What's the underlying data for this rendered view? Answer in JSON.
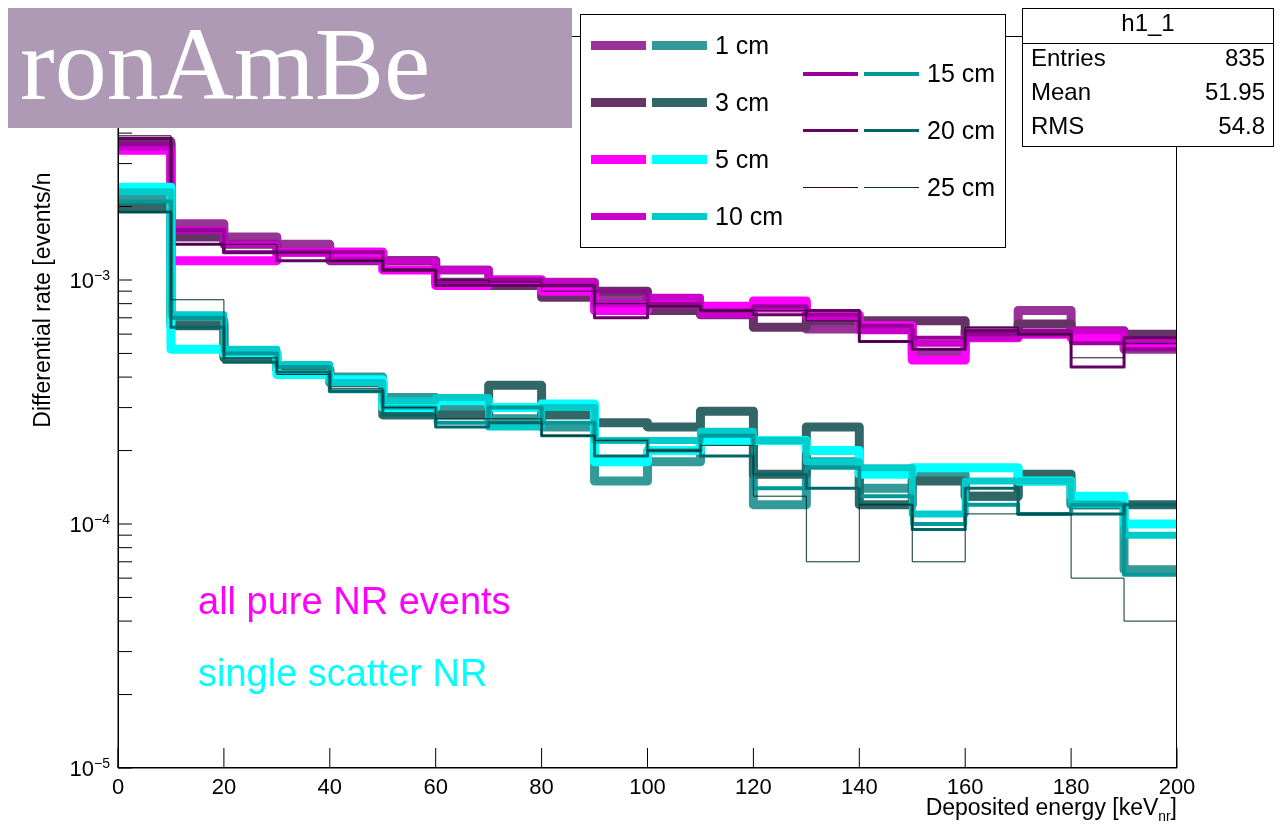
{
  "chart_data": {
    "type": "histogram",
    "title": "ronAmBe",
    "xlabel": "Deposited energy [keV$_{nr}$]",
    "ylabel": "Differential rate [events/n",
    "log": "y",
    "legend": "top right",
    "grid": false,
    "bins": [
      0,
      10,
      20,
      30,
      40,
      50,
      60,
      70,
      80,
      90,
      100,
      110,
      120,
      130,
      140,
      150,
      160,
      170,
      180,
      190,
      200
    ],
    "xlim": [
      0,
      200
    ],
    "xticks": [
      0,
      20,
      40,
      60,
      80,
      100,
      120,
      140,
      160,
      180,
      200
    ],
    "ylim": [
      1e-05,
      0.01
    ],
    "yticks": [
      {
        "value": 1e-05,
        "label": "10$^{−5}$"
      },
      {
        "value": 2e-05,
        "label": null
      },
      {
        "value": 3e-05,
        "label": null
      },
      {
        "value": 4e-05,
        "label": null
      },
      {
        "value": 5e-05,
        "label": null
      },
      {
        "value": 6e-05,
        "label": null
      },
      {
        "value": 7e-05,
        "label": null
      },
      {
        "value": 8e-05,
        "label": null
      },
      {
        "value": 9e-05,
        "label": null
      },
      {
        "value": 0.0001,
        "label": "10$^{−4}$"
      },
      {
        "value": 0.0002,
        "label": null
      },
      {
        "value": 0.0003,
        "label": null
      },
      {
        "value": 0.0004,
        "label": null
      },
      {
        "value": 0.0005,
        "label": null
      },
      {
        "value": 0.0006,
        "label": null
      },
      {
        "value": 0.0007,
        "label": null
      },
      {
        "value": 0.0008,
        "label": null
      },
      {
        "value": 0.0009,
        "label": null
      },
      {
        "value": 0.001,
        "label": "10$^{−3}$"
      },
      {
        "value": 0.002,
        "label": null
      },
      {
        "value": 0.003,
        "label": null
      },
      {
        "value": 0.004,
        "label": null
      },
      {
        "value": 0.005,
        "label": null
      },
      {
        "value": 0.006,
        "label": null
      },
      {
        "value": 0.007,
        "label": null
      },
      {
        "value": 0.008,
        "label": null
      },
      {
        "value": 0.009,
        "label": null
      }
    ],
    "annotations": [
      "all pure NR events",
      "single scatter NR",
      "h1_1",
      "Entries",
      "835",
      "Mean",
      "51.95",
      "RMS",
      "54.8"
    ],
    "series": [
      {
        "color": "#993399",
        "values": [
          0.0037,
          0.0017,
          0.0015,
          0.0014,
          0.0013,
          0.0012,
          0.0011,
          0.001,
          0.00098,
          0.00085,
          0.0008,
          0.00074,
          0.0008,
          0.00063,
          0.00065,
          0.0005,
          0.00062,
          0.00075,
          0.0006,
          0.00052
        ]
      },
      {
        "color": "#663366",
        "values": [
          0.0036,
          0.0015,
          0.0014,
          0.0013,
          0.0012,
          0.0012,
          0.00098,
          0.00095,
          0.00085,
          0.0009,
          0.00075,
          0.00072,
          0.00064,
          0.00068,
          0.00068,
          0.00068,
          0.0006,
          0.00066,
          0.00062,
          0.0006
        ]
      },
      {
        "color": "#ff00ff",
        "values": [
          0.0034,
          0.0012,
          0.0012,
          0.0013,
          0.0013,
          0.0011,
          0.00095,
          0.001,
          0.0009,
          0.00075,
          0.0008,
          0.00078,
          0.00082,
          0.00072,
          0.00065,
          0.00047,
          0.00058,
          0.0006,
          0.00058,
          0.00054
        ]
      },
      {
        "color": "#cc00cc",
        "values": [
          0.0035,
          0.0016,
          0.0014,
          0.0013,
          0.0012,
          0.0012,
          0.0011,
          0.001,
          0.00098,
          0.0008,
          0.00085,
          0.00072,
          0.00076,
          0.0007,
          0.00062,
          0.00055,
          0.00058,
          0.0006,
          0.00062,
          0.00056
        ]
      },
      {
        "color": "#990099",
        "values": [
          0.0036,
          0.0016,
          0.0013,
          0.0013,
          0.0013,
          0.0011,
          0.00098,
          0.001,
          0.00095,
          0.0009,
          0.0008,
          0.00075,
          0.00078,
          0.00072,
          0.00065,
          0.00058,
          0.0006,
          0.00062,
          0.00055,
          0.00052
        ]
      },
      {
        "color": "#660066",
        "values": [
          0.0038,
          0.0014,
          0.0013,
          0.0012,
          0.0012,
          0.0011,
          0.00095,
          0.00095,
          0.00095,
          0.0007,
          0.00078,
          0.00075,
          0.00072,
          0.00075,
          0.00056,
          0.00052,
          0.00062,
          0.0006,
          0.00044,
          0.00058
        ]
      },
      {
        "color": "#330033",
        "values": [
          0.0039,
          0.0014,
          0.0014,
          0.0013,
          0.0012,
          0.0011,
          0.001,
          0.00098,
          0.0009,
          0.0008,
          0.00078,
          0.00075,
          0.00075,
          0.00068,
          0.00056,
          0.00052,
          0.00064,
          0.0006,
          0.00048,
          0.00055
        ]
      },
      {
        "name": "1 cm",
        "color": "#339999",
        "values": [
          0.0022,
          0.00068,
          0.0005,
          0.00043,
          0.0004,
          0.00033,
          0.0003,
          0.00027,
          0.00025,
          0.00015,
          0.00018,
          0.00022,
          0.00012,
          0.00018,
          0.00014,
          0.00016,
          0.00013,
          0.00015,
          0.00012,
          6.5e-05
        ]
      },
      {
        "name": "3 cm",
        "color": "#336666",
        "values": [
          0.002,
          0.00065,
          0.00048,
          0.00043,
          0.00038,
          0.00028,
          0.00028,
          0.00037,
          0.00028,
          0.00026,
          0.00025,
          0.00029,
          0.00016,
          0.00025,
          0.00012,
          0.00015,
          0.00013,
          0.00016,
          0.00012,
          0.00012
        ]
      },
      {
        "name": "5 cm",
        "color": "#00ffff",
        "values": [
          0.0024,
          0.00052,
          0.0005,
          0.00041,
          0.00039,
          0.0003,
          0.00032,
          0.0003,
          0.00031,
          0.00018,
          0.0002,
          0.00022,
          0.00022,
          0.0002,
          0.00016,
          0.00017,
          0.00017,
          0.00015,
          0.00013,
          0.0001
        ]
      },
      {
        "name": "10 cm",
        "color": "#00cccc",
        "values": [
          0.0023,
          0.00072,
          0.00052,
          0.00045,
          0.00038,
          0.00032,
          0.00033,
          0.00025,
          0.0003,
          0.00022,
          0.00022,
          0.00024,
          0.00022,
          0.00018,
          0.00017,
          0.00011,
          0.00015,
          0.00015,
          0.00012,
          9e-05
        ]
      },
      {
        "name": "15 cm",
        "color": "#009999",
        "values": [
          0.0021,
          0.0007,
          0.0005,
          0.00044,
          0.00035,
          0.0003,
          0.00026,
          0.0003,
          0.00026,
          0.00022,
          0.0002,
          0.00023,
          0.00014,
          0.00017,
          0.00013,
          0.0001,
          0.00012,
          0.00011,
          0.00012,
          6.2e-05
        ]
      },
      {
        "name": "20 cm",
        "color": "#006666",
        "values": [
          0.0019,
          0.00064,
          0.00046,
          0.00042,
          0.00035,
          0.00028,
          0.00025,
          0.00026,
          0.00023,
          0.00019,
          0.0002,
          0.00019,
          0.00016,
          0.00014,
          0.00012,
          9.5e-05,
          0.00014,
          0.00011,
          0.00011,
          0.00012
        ]
      },
      {
        "name": "25 cm",
        "color": "#003333",
        "values": [
          0.0019,
          0.00083,
          0.00048,
          0.00041,
          0.00036,
          0.0003,
          0.00027,
          0.00027,
          0.00023,
          0.00022,
          0.0002,
          0.00021,
          0.00013,
          7e-05,
          0.00012,
          7e-05,
          0.00011,
          0.00011,
          6e-05,
          4e-05
        ]
      }
    ]
  }
}
